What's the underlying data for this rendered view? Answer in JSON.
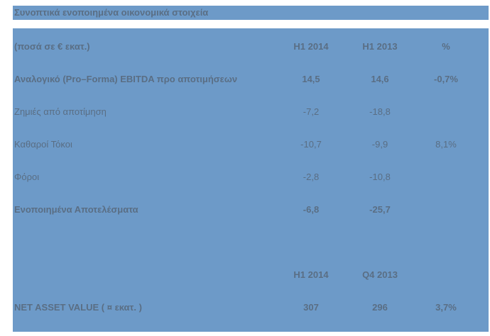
{
  "title": "Συνοπτικά ενοποιημένα οικονομικά στοιχεία",
  "header": {
    "label": "(ποσά σε € εκατ.)",
    "col1": "H1 2014",
    "col2": "H1 2013",
    "col3": "%"
  },
  "rows": [
    {
      "label": "Αναλογικό (Pro–Forma) EBITDA προ αποτιμήσεων",
      "v1": "14,5",
      "v2": "14,6",
      "v3": "-0,7%"
    },
    {
      "label": "Ζημιές από αποτίμηση",
      "v1": "-7,2",
      "v2": "-18,8",
      "v3": ""
    },
    {
      "label": "Καθαροί Τόκοι",
      "v1": "-10,7",
      "v2": "-9,9",
      "v3": "8,1%"
    },
    {
      "label": "Φόροι",
      "v1": "-2,8",
      "v2": "-10,8",
      "v3": ""
    },
    {
      "label": "Ενοποιημένα Αποτελέσματα",
      "v1": "-6,8",
      "v2": "-25,7",
      "v3": ""
    }
  ],
  "nav_header": {
    "col1": "H1 2014",
    "col2": "Q4 2013"
  },
  "nav_row": {
    "label": "NET ASSET VALUE ( ¤ εκατ. )",
    "v1": "307",
    "v2": "296",
    "v3": "3,7%"
  }
}
